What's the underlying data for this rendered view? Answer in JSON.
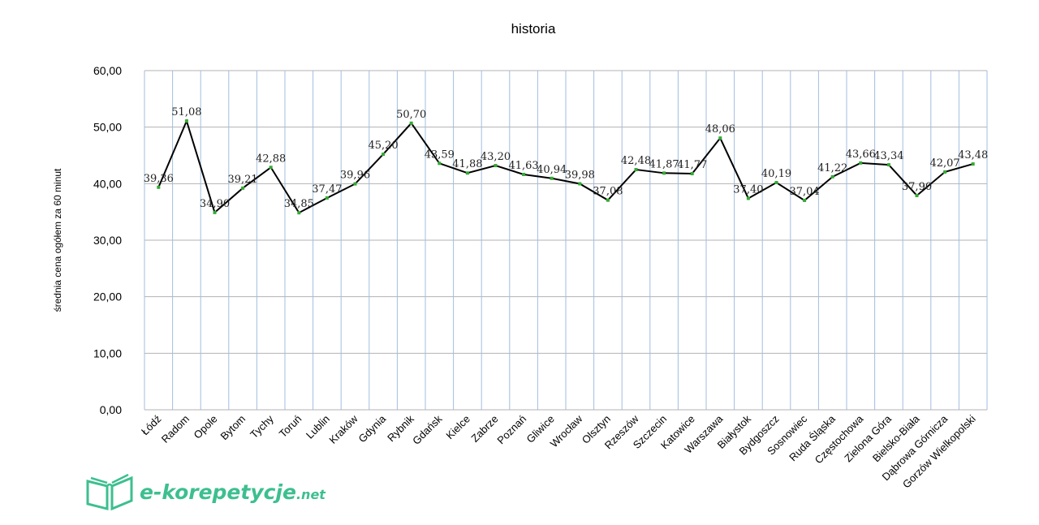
{
  "chart_data": {
    "type": "line",
    "title": "historia",
    "xlabel": "",
    "ylabel": "średnia cena ogółem za 60 minut",
    "ylim": [
      0,
      60
    ],
    "yticks": [
      "0,00",
      "10,00",
      "20,00",
      "30,00",
      "40,00",
      "50,00",
      "60,00"
    ],
    "grid": true,
    "legend": "none",
    "categories": [
      "Łódź",
      "Radom",
      "Opole",
      "Bytom",
      "Tychy",
      "Toruń",
      "Lublin",
      "Kraków",
      "Gdynia",
      "Rybnik",
      "Gdańsk",
      "Kielce",
      "Zabrze",
      "Poznań",
      "Gliwice",
      "Wrocław",
      "Olsztyn",
      "Rzeszów",
      "Szczecin",
      "Katowice",
      "Warszawa",
      "Białystok",
      "Bydgoszcz",
      "Sosnowiec",
      "Ruda Śląska",
      "Częstochowa",
      "Zielona Góra",
      "Bielsko-Biała",
      "Dąbrowa Górnicza",
      "Gorzów Wielkopolski"
    ],
    "values": [
      39.36,
      51.08,
      34.9,
      39.21,
      42.88,
      34.85,
      37.47,
      39.96,
      45.2,
      50.7,
      43.59,
      41.88,
      43.2,
      41.63,
      40.94,
      39.98,
      37.08,
      42.48,
      41.87,
      41.77,
      48.06,
      37.4,
      40.19,
      37.04,
      41.22,
      43.66,
      43.34,
      37.9,
      42.07,
      43.48
    ],
    "series_color": "#000000",
    "marker_color": "#33aa33",
    "gridline_color": "#a3bde0"
  },
  "logo": {
    "main": "e-korepetycje",
    "suffix": ".net",
    "color": "#3dbf8f"
  }
}
